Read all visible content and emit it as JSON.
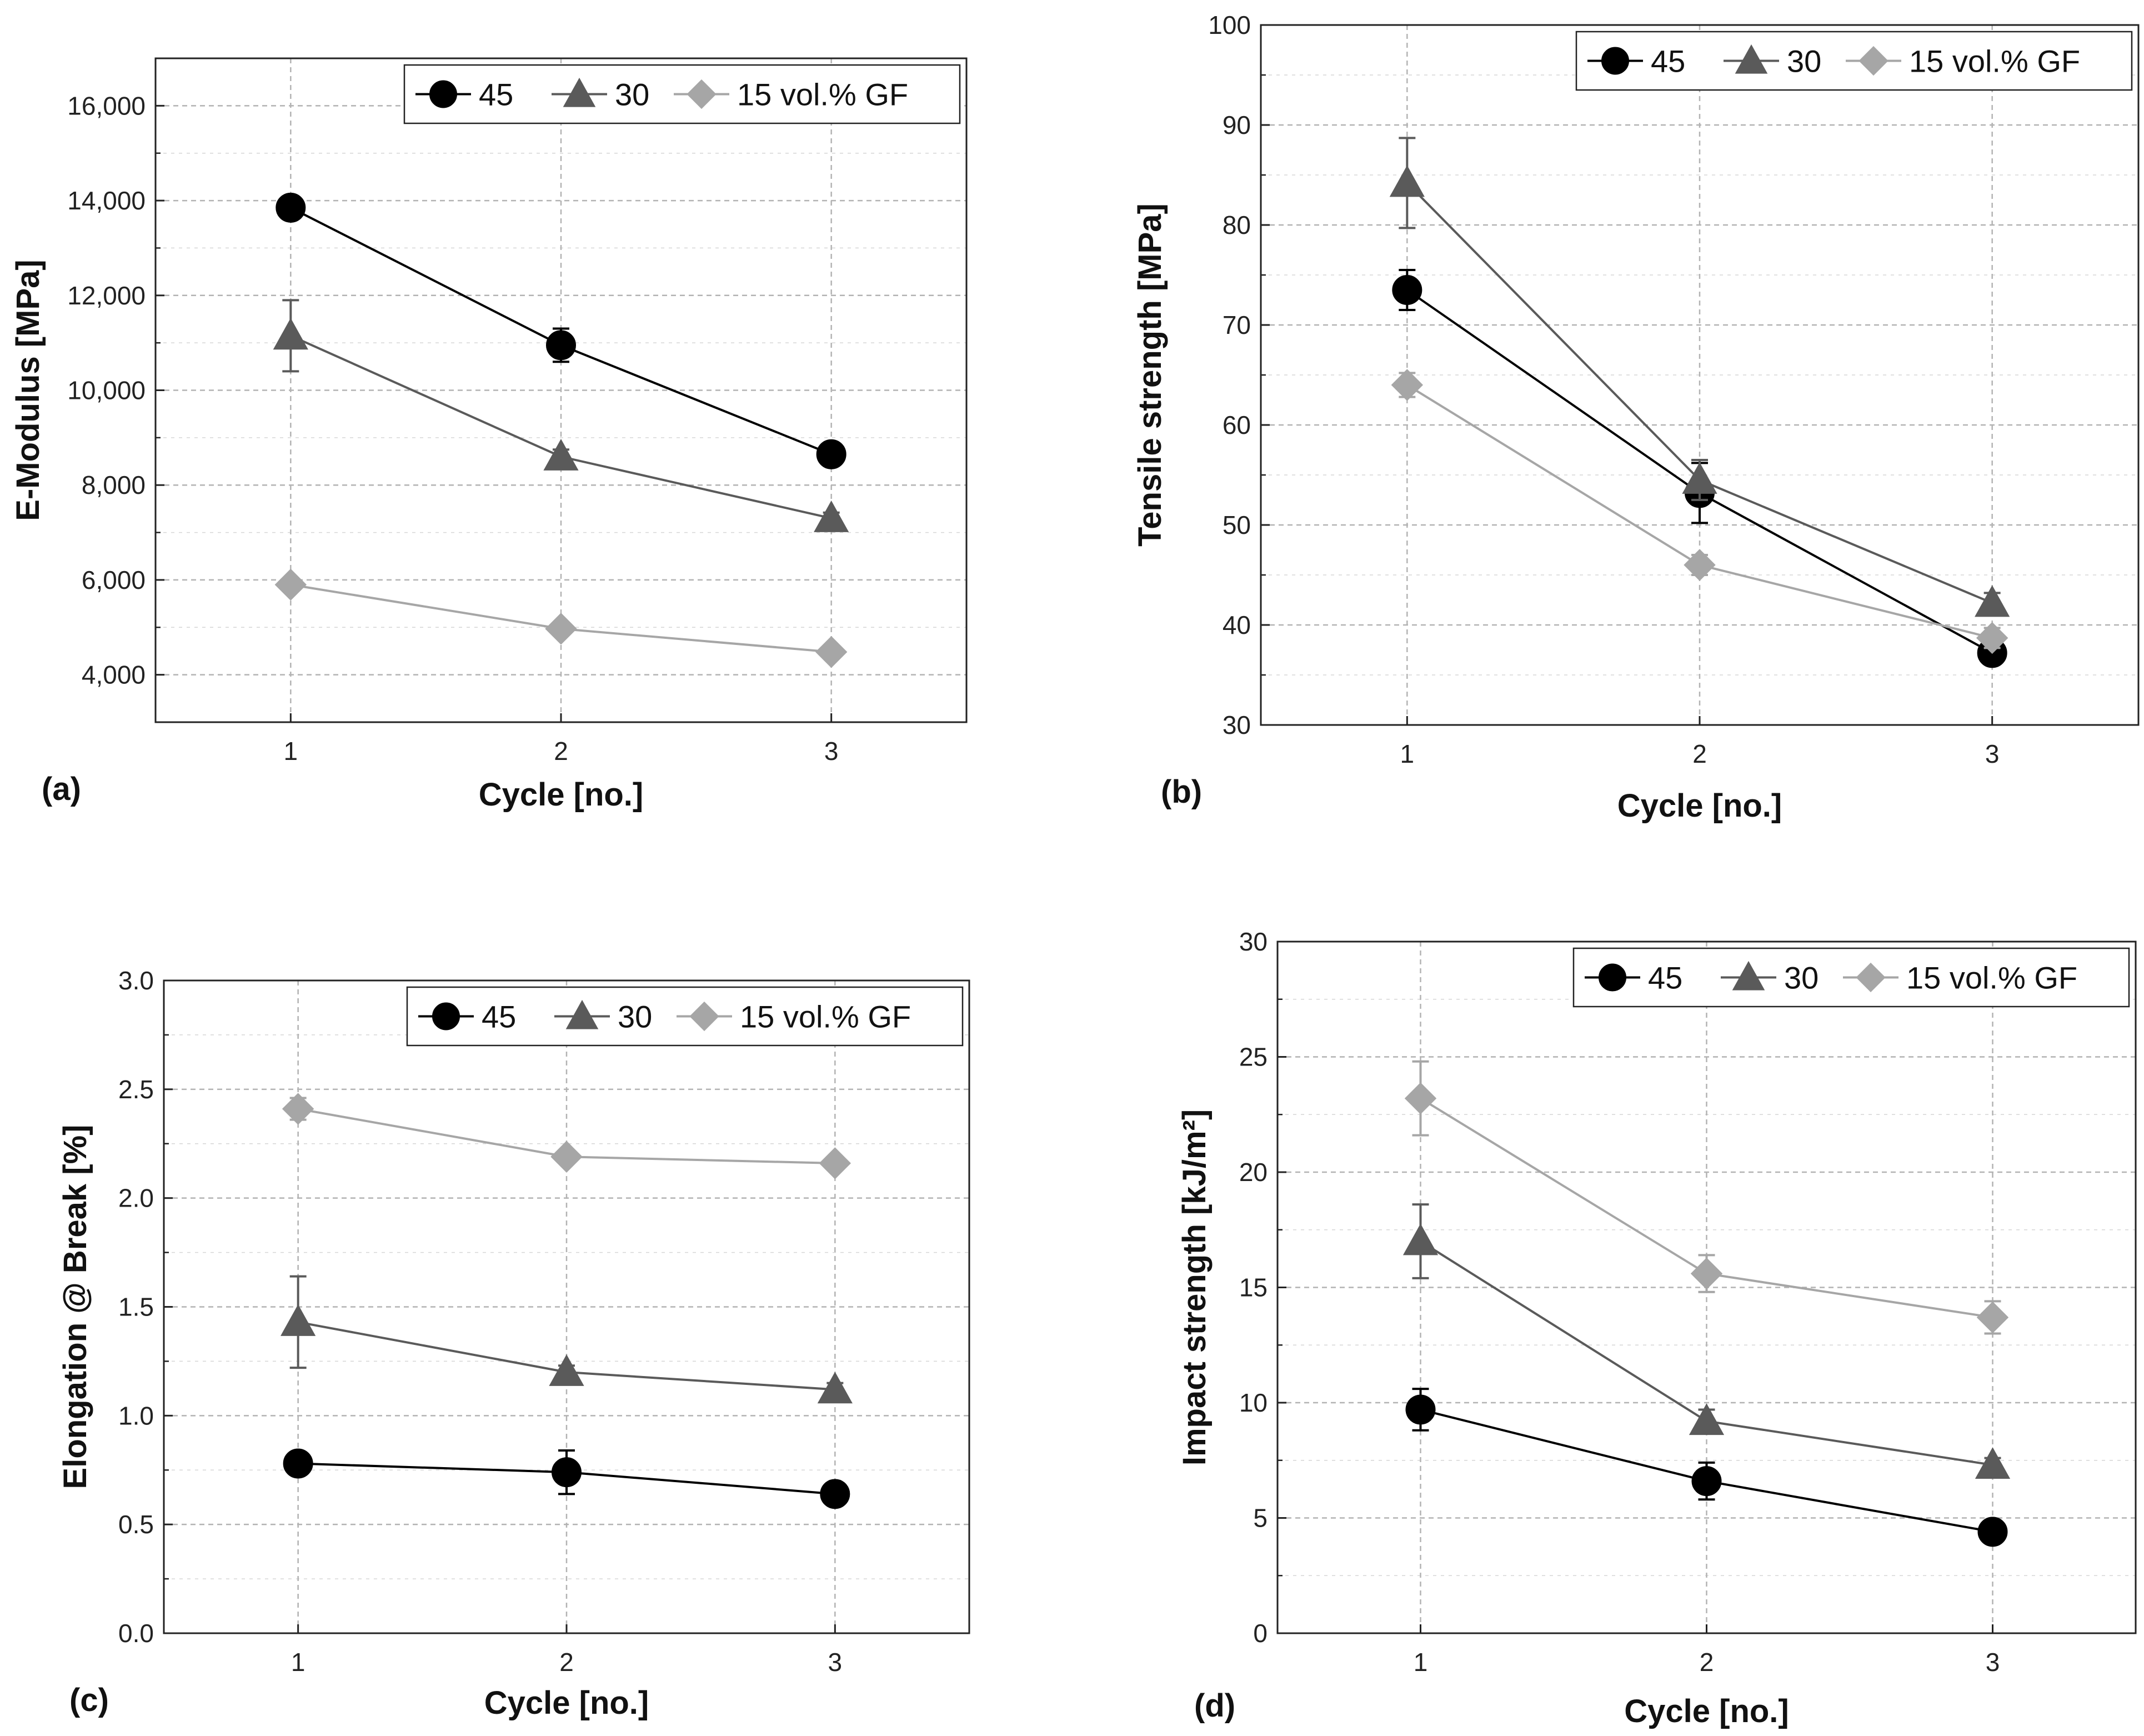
{
  "series_meta": [
    {
      "key": "s45",
      "marker": "circle",
      "color": "#000000",
      "line_color": "#000000"
    },
    {
      "key": "s30",
      "marker": "triangle",
      "color": "#5a5a5a",
      "line_color": "#5a5a5a"
    },
    {
      "key": "s15",
      "marker": "diamond",
      "color": "#a6a6a6",
      "line_color": "#a6a6a6"
    }
  ],
  "chart_data": [
    {
      "type": "line",
      "panel_label": "(a)",
      "xlabel": "Cycle [no.]",
      "ylabel": "E-Modulus [MPa]",
      "x": [
        1,
        2,
        3
      ],
      "x_ticks": [
        "1",
        "2",
        "3"
      ],
      "xlim": [
        0.5,
        3.5
      ],
      "ylim": [
        3000,
        17000
      ],
      "y_ticks": [
        4000,
        6000,
        8000,
        10000,
        12000,
        14000,
        16000
      ],
      "y_tick_labels": [
        "4,000",
        "6,000",
        "8,000",
        "10,000",
        "12,000",
        "14,000",
        "16,000"
      ],
      "legend_position": "top-right",
      "grid": true,
      "series": [
        {
          "name": "45",
          "values": [
            13850,
            10950,
            8650
          ],
          "errors": [
            150,
            350,
            150
          ]
        },
        {
          "name": "30",
          "values": [
            11150,
            8600,
            7300
          ],
          "errors": [
            750,
            150,
            120
          ]
        },
        {
          "name": "15 vol.% GF",
          "values": [
            5900,
            4970,
            4480
          ],
          "errors": [
            120,
            120,
            100
          ]
        }
      ]
    },
    {
      "type": "line",
      "panel_label": "(b)",
      "xlabel": "Cycle [no.]",
      "ylabel": "Tensile strength [MPa]",
      "x": [
        1,
        2,
        3
      ],
      "x_ticks": [
        "1",
        "2",
        "3"
      ],
      "xlim": [
        0.5,
        3.5
      ],
      "ylim": [
        30,
        100
      ],
      "y_ticks": [
        30,
        40,
        50,
        60,
        70,
        80,
        90,
        100
      ],
      "y_tick_labels": [
        "30",
        "40",
        "50",
        "60",
        "70",
        "80",
        "90",
        "100"
      ],
      "legend_position": "top-right",
      "grid": true,
      "series": [
        {
          "name": "45",
          "values": [
            73.5,
            53.2,
            37.2
          ],
          "errors": [
            2.0,
            3.0,
            0.8
          ]
        },
        {
          "name": "30",
          "values": [
            84.2,
            54.5,
            42.2
          ],
          "errors": [
            4.5,
            2.0,
            1.0
          ]
        },
        {
          "name": "15 vol.% GF",
          "values": [
            64.0,
            46.0,
            38.7
          ],
          "errors": [
            1.2,
            1.0,
            1.0
          ]
        }
      ]
    },
    {
      "type": "line",
      "panel_label": "(c)",
      "xlabel": "Cycle [no.]",
      "ylabel": "Elongation @ Break [%]",
      "x": [
        1,
        2,
        3
      ],
      "x_ticks": [
        "1",
        "2",
        "3"
      ],
      "xlim": [
        0.5,
        3.5
      ],
      "ylim": [
        0.0,
        3.0
      ],
      "y_ticks": [
        0.0,
        0.5,
        1.0,
        1.5,
        2.0,
        2.5,
        3.0
      ],
      "y_tick_labels": [
        "0.0",
        "0.5",
        "1.0",
        "1.5",
        "2.0",
        "2.5",
        "3.0"
      ],
      "legend_position": "top-right",
      "grid": true,
      "series": [
        {
          "name": "45",
          "values": [
            0.78,
            0.74,
            0.64
          ],
          "errors": [
            0.03,
            0.1,
            0.03
          ]
        },
        {
          "name": "30",
          "values": [
            1.43,
            1.2,
            1.12
          ],
          "errors": [
            0.21,
            0.03,
            0.03
          ]
        },
        {
          "name": "15 vol.% GF",
          "values": [
            2.41,
            2.19,
            2.16
          ],
          "errors": [
            0.05,
            0.03,
            0.03
          ]
        }
      ]
    },
    {
      "type": "line",
      "panel_label": "(d)",
      "xlabel": "Cycle [no.]",
      "ylabel": "Impact strength [kJ/m²]",
      "x": [
        1,
        2,
        3
      ],
      "x_ticks": [
        "1",
        "2",
        "3"
      ],
      "xlim": [
        0.5,
        3.5
      ],
      "ylim": [
        0,
        30
      ],
      "y_ticks": [
        0,
        5,
        10,
        15,
        20,
        25,
        30
      ],
      "y_tick_labels": [
        "0",
        "5",
        "10",
        "15",
        "20",
        "25",
        "30"
      ],
      "legend_position": "top-right",
      "grid": true,
      "series": [
        {
          "name": "45",
          "values": [
            9.7,
            6.6,
            4.4
          ],
          "errors": [
            0.9,
            0.8,
            0.3
          ]
        },
        {
          "name": "30",
          "values": [
            17.0,
            9.2,
            7.3
          ],
          "errors": [
            1.6,
            0.5,
            0.3
          ]
        },
        {
          "name": "15 vol.% GF",
          "values": [
            23.2,
            15.6,
            13.7
          ],
          "errors": [
            1.6,
            0.8,
            0.7
          ]
        }
      ]
    }
  ]
}
